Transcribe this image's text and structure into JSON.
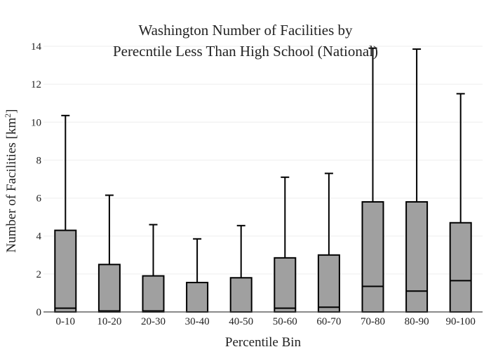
{
  "chart_data": {
    "type": "box",
    "title_lines": [
      "Washington Number of Facilities by",
      "Perecntile Less Than High School (National)"
    ],
    "xlabel": "Percentile Bin",
    "ylabel": "Number of Facilities  [km",
    "ylabel_superscript": "2",
    "ylabel_close": "]",
    "ylim": [
      0,
      14
    ],
    "yticks": [
      0,
      2,
      4,
      6,
      8,
      10,
      12,
      14
    ],
    "grid": true,
    "legend": "none",
    "box_fill": "#a0a0a0",
    "box_stroke": "#000000",
    "categories": [
      "0-10",
      "10-20",
      "20-30",
      "30-40",
      "40-50",
      "50-60",
      "60-70",
      "70-80",
      "80-90",
      "90-100"
    ],
    "boxes": [
      {
        "q1": 0,
        "median": 0.2,
        "q3": 4.3,
        "whisker_high": 10.35
      },
      {
        "q1": 0,
        "median": 0.05,
        "q3": 2.5,
        "whisker_high": 6.15
      },
      {
        "q1": 0,
        "median": 0.05,
        "q3": 1.9,
        "whisker_high": 4.6
      },
      {
        "q1": 0,
        "median": 0.0,
        "q3": 1.55,
        "whisker_high": 3.85
      },
      {
        "q1": 0,
        "median": 0.0,
        "q3": 1.8,
        "whisker_high": 4.55
      },
      {
        "q1": 0,
        "median": 0.2,
        "q3": 2.85,
        "whisker_high": 7.1
      },
      {
        "q1": 0,
        "median": 0.25,
        "q3": 3.0,
        "whisker_high": 7.3
      },
      {
        "q1": 0,
        "median": 1.35,
        "q3": 5.8,
        "whisker_high": 13.9
      },
      {
        "q1": 0,
        "median": 1.1,
        "q3": 5.8,
        "whisker_high": 13.85
      },
      {
        "q1": 0,
        "median": 1.65,
        "q3": 4.7,
        "whisker_high": 11.5
      }
    ]
  }
}
